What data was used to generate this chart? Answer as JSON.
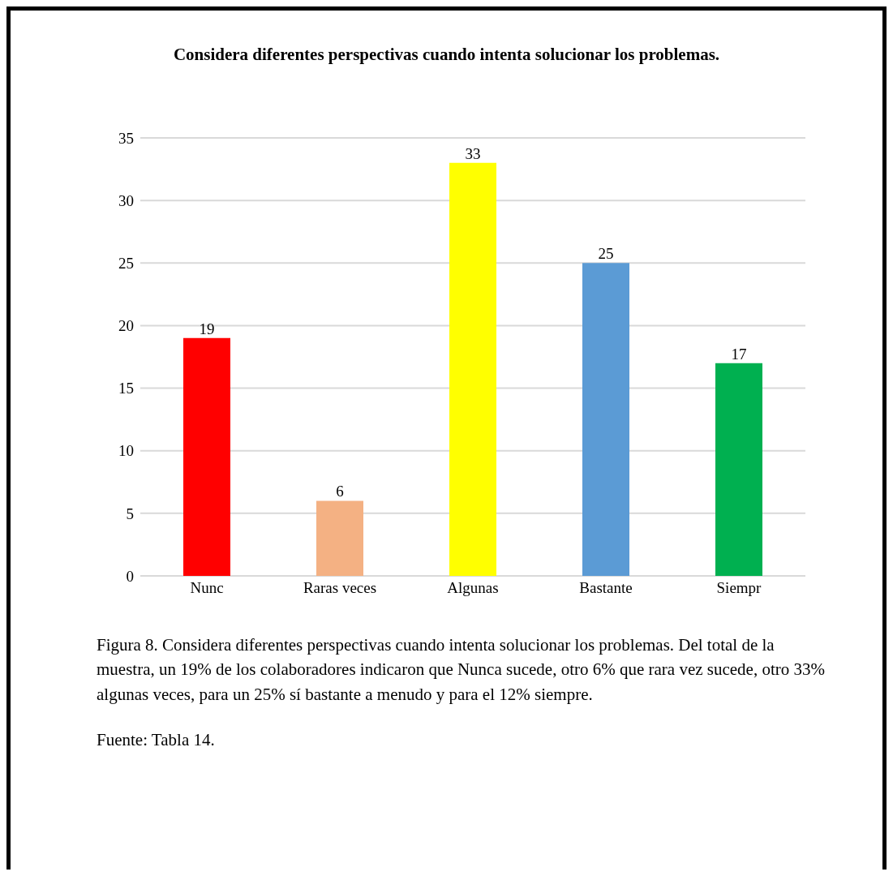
{
  "chart_data": {
    "type": "bar",
    "title": "Considera diferentes perspectivas cuando intenta solucionar los problemas.",
    "categories": [
      "Nunc",
      "Raras veces",
      "Algunas",
      "Bastante",
      "Siempr"
    ],
    "values": [
      19,
      6,
      33,
      25,
      17
    ],
    "colors": [
      "#ff0000",
      "#f4b183",
      "#ffff00",
      "#5b9bd5",
      "#00b050"
    ],
    "ylim": [
      0,
      35
    ],
    "yticks": [
      0,
      5,
      10,
      15,
      20,
      25,
      30,
      35
    ],
    "grid": "y",
    "data_labels": true,
    "annotations": [
      "Figura 8. Considera diferentes perspectivas cuando intenta solucionar los problemas. Del total de la muestra, un 19% de los colaboradores indicaron que Nunca sucede, otro 6% que rara vez sucede, otro 33% algunas veces, para un 25% sí bastante a menudo y para el 12% siempre.",
      "Fuente: Tabla 14."
    ]
  }
}
